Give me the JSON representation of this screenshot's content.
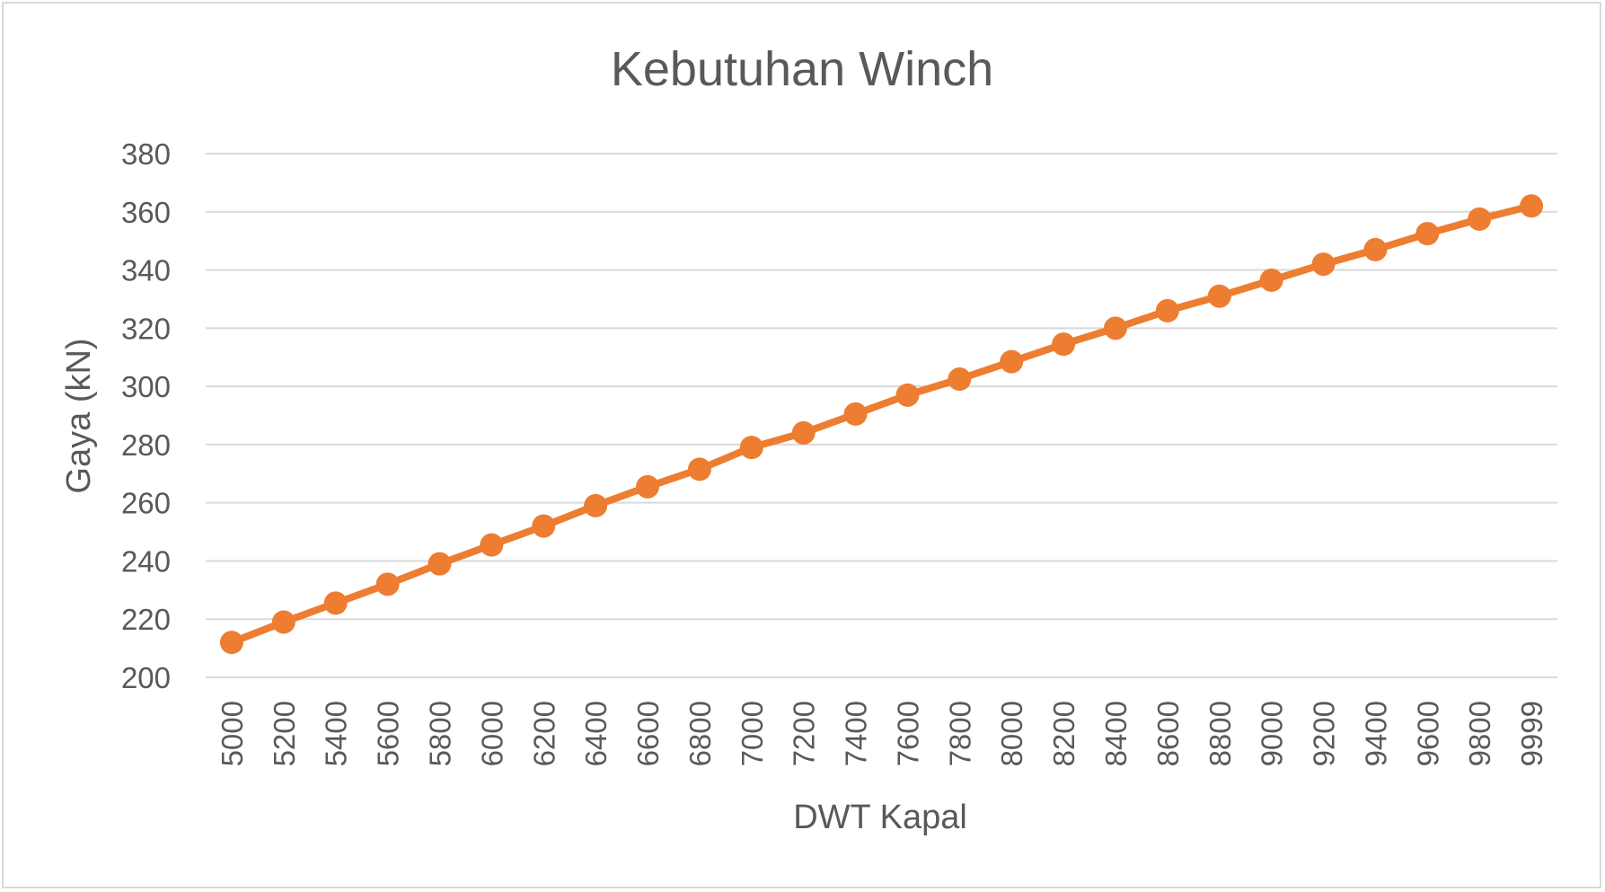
{
  "chart_data": {
    "type": "line",
    "title": "Kebutuhan Winch",
    "xlabel": "DWT Kapal",
    "ylabel": "Gaya (kN)",
    "ylim": [
      200,
      380
    ],
    "yticks": [
      "200",
      "220",
      "240",
      "260",
      "280",
      "300",
      "320",
      "340",
      "360",
      "380"
    ],
    "grid": true,
    "legend": "none",
    "color": "#ed7d31",
    "categories": [
      "5000",
      "5200",
      "5400",
      "5600",
      "5800",
      "6000",
      "6200",
      "6400",
      "6600",
      "6800",
      "7000",
      "7200",
      "7400",
      "7600",
      "7800",
      "8000",
      "8200",
      "8400",
      "8600",
      "8800",
      "9000",
      "9200",
      "9400",
      "9600",
      "9800",
      "9999"
    ],
    "series": [
      {
        "values": [
          212,
          219,
          225.5,
          232,
          239,
          245.5,
          252,
          259,
          265.5,
          271.5,
          279,
          284,
          290.5,
          297,
          302.5,
          308.5,
          314.5,
          320,
          326,
          331,
          336.5,
          342,
          347,
          352.5,
          357.5,
          362
        ]
      }
    ]
  }
}
